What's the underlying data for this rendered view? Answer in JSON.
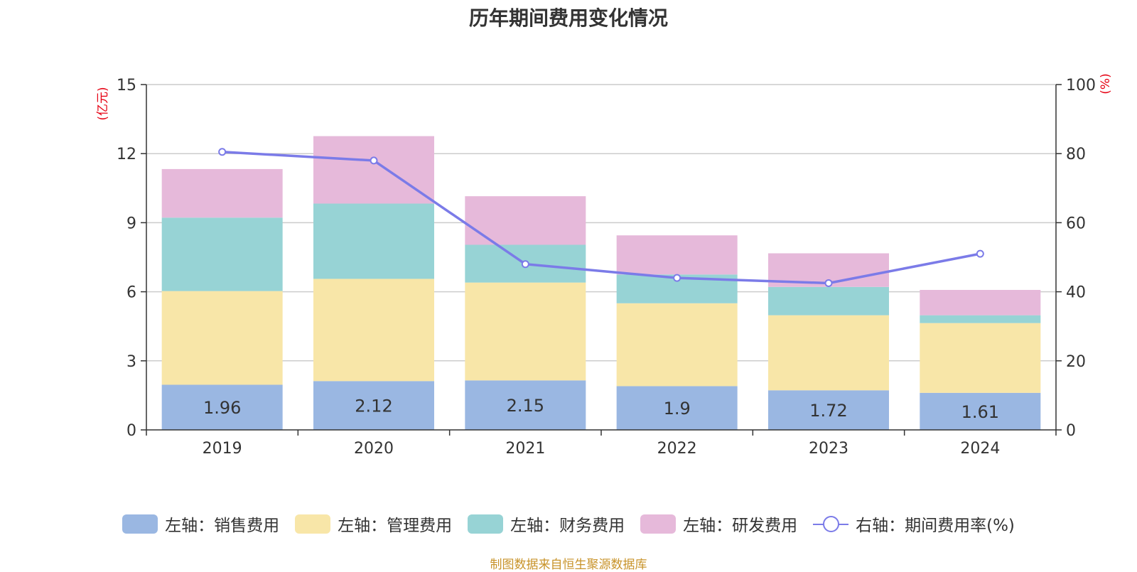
{
  "colors": {
    "sales": "#9ab7e2",
    "admin": "#f8e6a8",
    "finance": "#97d3d5",
    "rd": "#e6b9da",
    "rate": "#7b7be8",
    "unit_text": "#e60012",
    "source_text": "#c8932a"
  },
  "chart_data": {
    "type": "bar",
    "stacked": true,
    "title": "历年期间费用变化情况",
    "categories": [
      "2019",
      "2020",
      "2021",
      "2022",
      "2023",
      "2024"
    ],
    "series": [
      {
        "name": "左轴：销售费用",
        "axis": "left",
        "values": [
          1.96,
          2.12,
          2.15,
          1.9,
          1.72,
          1.61
        ],
        "data_labels": [
          "1.96",
          "2.12",
          "2.15",
          "1.9",
          "1.72",
          "1.61"
        ]
      },
      {
        "name": "左轴：管理费用",
        "axis": "left",
        "values": [
          4.07,
          4.44,
          4.25,
          3.6,
          3.26,
          3.03
        ]
      },
      {
        "name": "左轴：财务费用",
        "axis": "left",
        "values": [
          3.19,
          3.27,
          1.64,
          1.25,
          1.23,
          0.34
        ]
      },
      {
        "name": "左轴：研发费用",
        "axis": "left",
        "values": [
          2.11,
          2.93,
          2.11,
          1.7,
          1.46,
          1.1
        ]
      },
      {
        "name": "右轴：期间费用率(%)",
        "axis": "right",
        "type": "line",
        "values": [
          80.5,
          78.0,
          48.0,
          44.0,
          42.5,
          51.0
        ]
      }
    ],
    "left_axis": {
      "unit": "(亿元)",
      "ylim": [
        0,
        15
      ],
      "ticks": [
        "0",
        "3",
        "6",
        "9",
        "12",
        "15"
      ]
    },
    "right_axis": {
      "unit": "(%)",
      "ylim": [
        0,
        100
      ],
      "ticks": [
        "0",
        "20",
        "40",
        "60",
        "80",
        "100"
      ]
    },
    "grid": true,
    "legend_position": "bottom"
  },
  "source": "制图数据来自恒生聚源数据库"
}
